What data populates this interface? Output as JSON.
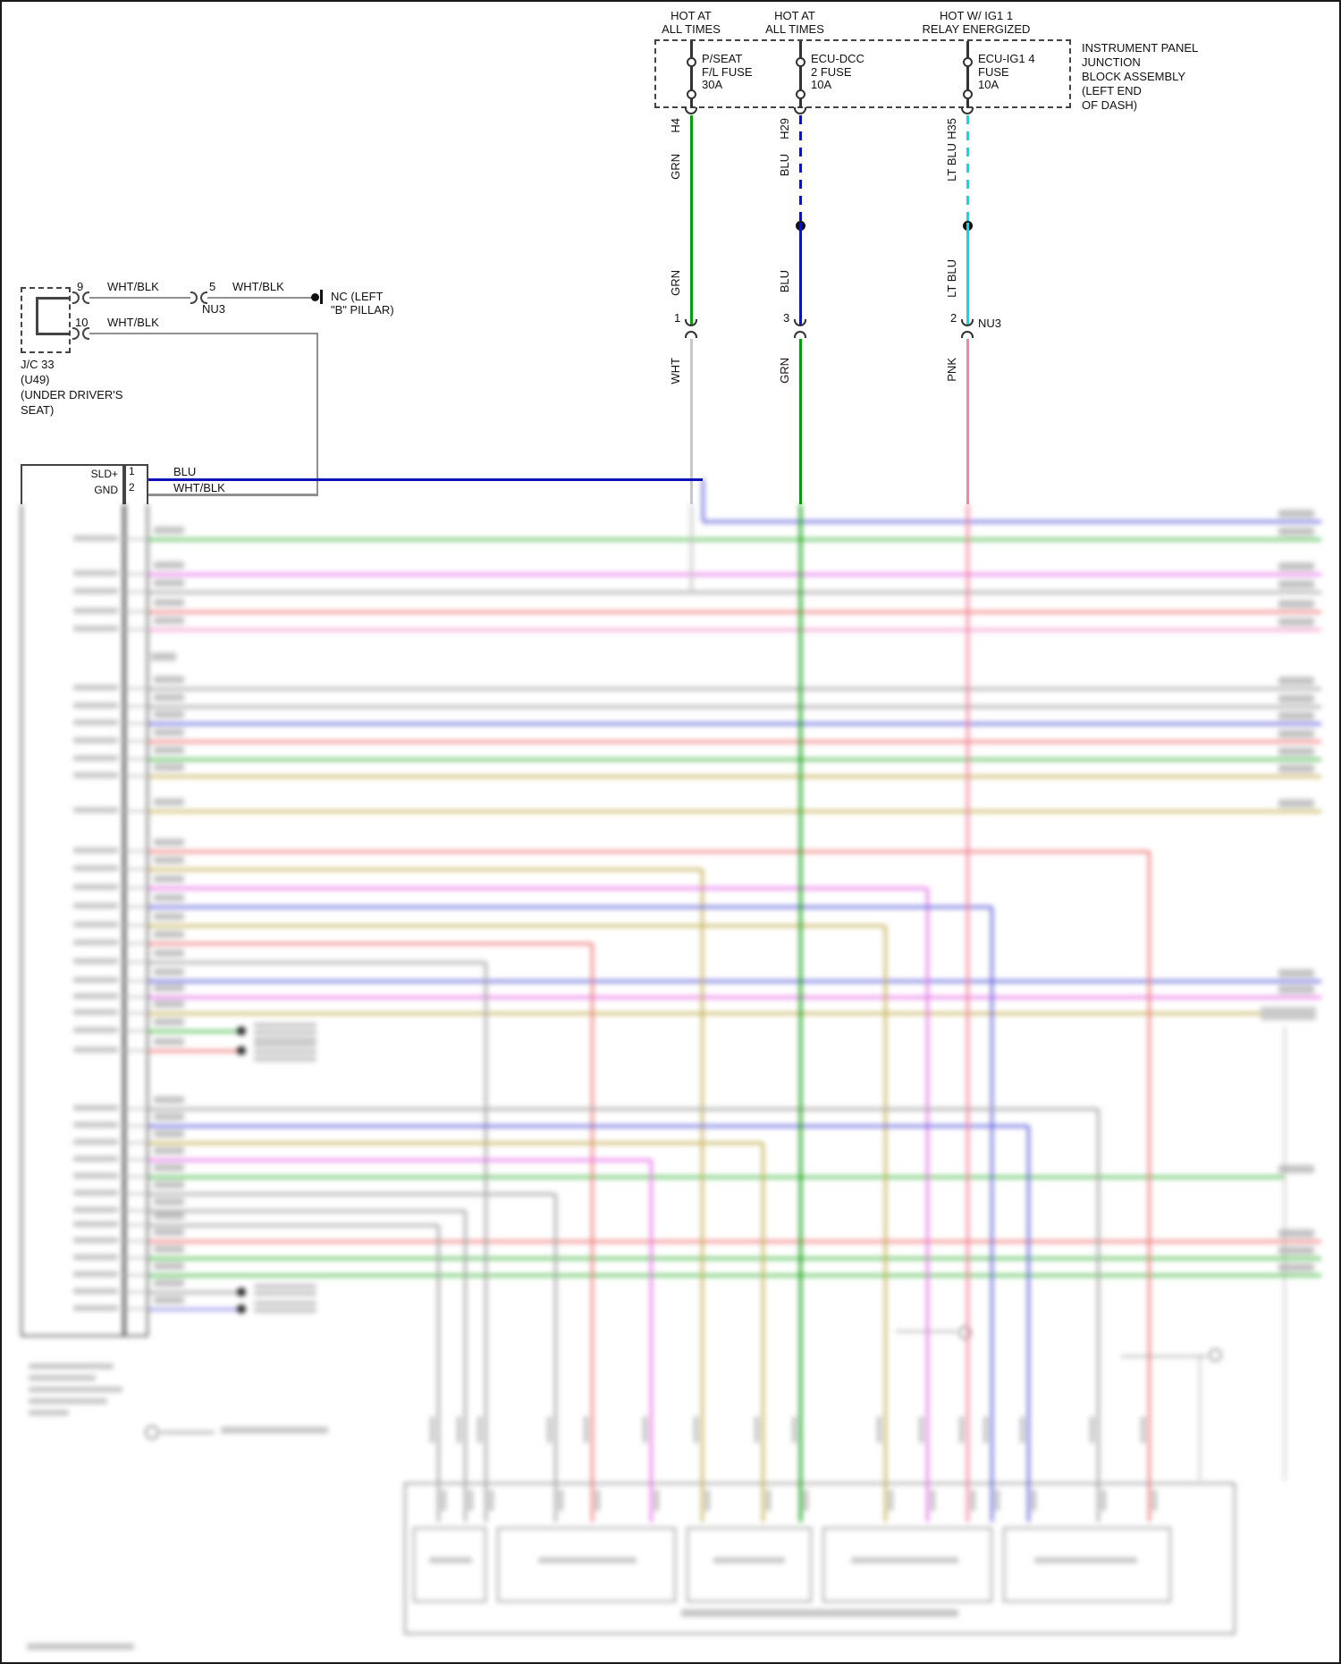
{
  "header": {
    "power1_l1": "HOT AT",
    "power1_l2": "ALL TIMES",
    "power2_l1": "HOT AT",
    "power2_l2": "ALL TIMES",
    "power3_l1": "HOT W/ IG1 1",
    "power3_l2": "RELAY ENERGIZED",
    "note_l1": "INSTRUMENT PANEL",
    "note_l2": "JUNCTION",
    "note_l3": "BLOCK ASSEMBLY",
    "note_l4": "(LEFT END",
    "note_l5": "OF DASH)",
    "fuse1_l1": "P/SEAT",
    "fuse1_l2": "F/L FUSE",
    "fuse1_l3": "30A",
    "fuse2_l1": "ECU-DCC",
    "fuse2_l2": "2 FUSE",
    "fuse2_l3": "10A",
    "fuse3_l1": "ECU-IG1 4",
    "fuse3_l2": "FUSE",
    "fuse3_l3": "10A",
    "pin1": "H4",
    "pin2": "H29",
    "pin3": "H35"
  },
  "wires": {
    "c1_upper": "GRN",
    "c2_upper": "BLU",
    "c3_upper": "LT BLU",
    "c1_mid": "GRN",
    "c2_mid": "BLU",
    "c3_mid": "LT BLU",
    "c1_pin": "1",
    "c2_pin": "3",
    "c3_pin": "2",
    "nu3": "NU3",
    "c1_lower": "WHT",
    "c2_lower": "GRN",
    "c3_lower": "PNK"
  },
  "jc33": {
    "pin9": "9",
    "pin10": "10",
    "w9": "WHT/BLK",
    "w9b": "WHT/BLK",
    "w10": "WHT/BLK",
    "pin5": "5",
    "nu3": "NU3",
    "nc1": "NC (LEFT",
    "nc2": "\"B\" PILLAR)",
    "n1": "J/C 33",
    "n2": "(U49)",
    "n3": "(UNDER DRIVER'S",
    "n4": "SEAT)"
  },
  "module": {
    "p1": "SLD+",
    "p1n": "1",
    "p1w": "BLU",
    "p2": "GND",
    "p2n": "2",
    "p2w": "WHT/BLK"
  },
  "colors": {
    "grn": "#089c08",
    "blu": "#1111bb",
    "lt_blu": "#00dfee",
    "wht": "#c8c8c8",
    "pnk": "#f585a0",
    "wht_blk": "#909090"
  }
}
